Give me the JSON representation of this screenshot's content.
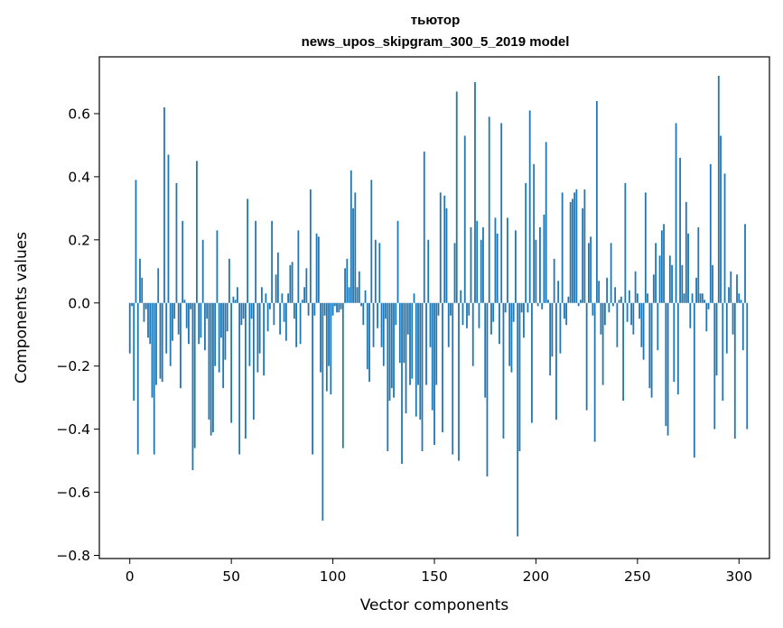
{
  "chart_data": {
    "type": "bar",
    "title": "тьютор",
    "subtitle": "news_upos_skipgram_300_5_2019 model",
    "xlabel": "Vector components",
    "ylabel": "Components values",
    "xlim": [
      -15,
      315
    ],
    "ylim": [
      -0.81,
      0.78
    ],
    "xticks": [
      0,
      50,
      100,
      150,
      200,
      250,
      300
    ],
    "yticks": [
      -0.8,
      -0.6,
      -0.4,
      -0.2,
      0.0,
      0.2,
      0.4,
      0.6
    ],
    "ytick_labels": [
      "−0.8",
      "−0.6",
      "−0.4",
      "−0.2",
      "0.0",
      "0.2",
      "0.4",
      "0.6"
    ],
    "xtick_labels": [
      "0",
      "50",
      "100",
      "150",
      "200",
      "250",
      "300"
    ],
    "grid": false,
    "bar_color": "#1f77b4",
    "x_start": 0,
    "values": [
      -0.16,
      -0.01,
      -0.31,
      0.39,
      -0.48,
      0.14,
      0.08,
      -0.06,
      -0.02,
      -0.11,
      -0.13,
      -0.3,
      -0.48,
      -0.26,
      0.11,
      -0.24,
      -0.25,
      0.62,
      -0.16,
      0.47,
      -0.2,
      -0.12,
      -0.05,
      0.38,
      -0.1,
      -0.27,
      0.26,
      0.01,
      -0.08,
      -0.13,
      -0.02,
      -0.53,
      -0.46,
      0.45,
      -0.13,
      -0.11,
      0.2,
      -0.15,
      -0.05,
      -0.37,
      -0.42,
      -0.41,
      -0.2,
      0.23,
      -0.22,
      -0.11,
      -0.27,
      -0.18,
      -0.09,
      0.14,
      -0.38,
      0.02,
      0.01,
      0.05,
      -0.48,
      -0.07,
      -0.05,
      -0.43,
      0.33,
      -0.2,
      -0.05,
      -0.37,
      0.26,
      -0.22,
      -0.16,
      0.05,
      -0.23,
      0.03,
      -0.09,
      -0.02,
      0.26,
      -0.07,
      0.09,
      0.16,
      -0.1,
      0.03,
      -0.06,
      -0.12,
      0.03,
      0.12,
      0.13,
      -0.05,
      -0.14,
      0.23,
      -0.13,
      0.01,
      0.05,
      0.11,
      -0.04,
      0.36,
      -0.48,
      -0.04,
      0.22,
      0.21,
      -0.22,
      -0.69,
      -0.04,
      -0.28,
      -0.2,
      -0.29,
      -0.04,
      -0.01,
      -0.03,
      -0.03,
      -0.02,
      -0.46,
      0.11,
      0.14,
      0.05,
      0.42,
      0.3,
      0.35,
      0.05,
      0.1,
      -0.01,
      -0.07,
      0.04,
      -0.21,
      -0.25,
      0.39,
      -0.14,
      0.2,
      -0.08,
      0.19,
      -0.14,
      -0.2,
      -0.05,
      -0.47,
      -0.31,
      -0.27,
      -0.3,
      -0.07,
      0.26,
      -0.19,
      -0.51,
      -0.19,
      -0.35,
      -0.1,
      -0.26,
      -0.24,
      0.03,
      -0.36,
      -0.26,
      -0.37,
      -0.47,
      0.48,
      -0.26,
      0.2,
      -0.14,
      -0.34,
      -0.45,
      -0.26,
      -0.04,
      0.35,
      -0.41,
      0.34,
      0.3,
      -0.14,
      -0.04,
      -0.48,
      0.19,
      0.67,
      -0.5,
      0.04,
      -0.07,
      0.53,
      -0.08,
      -0.04,
      0.24,
      -0.2,
      0.7,
      0.26,
      -0.08,
      0.2,
      0.24,
      -0.3,
      -0.55,
      0.59,
      -0.1,
      -0.06,
      0.27,
      0.22,
      -0.13,
      0.57,
      -0.43,
      -0.03,
      0.27,
      -0.2,
      -0.22,
      -0.06,
      0.23,
      -0.74,
      -0.47,
      -0.03,
      -0.11,
      0.38,
      -0.03,
      0.61,
      -0.38,
      0.44,
      0.2,
      -0.01,
      0.24,
      -0.02,
      0.28,
      0.51,
      0.01,
      -0.23,
      -0.17,
      0.14,
      -0.37,
      0.07,
      -0.16,
      0.35,
      -0.05,
      -0.07,
      0.02,
      0.32,
      0.33,
      0.35,
      0.36,
      -0.01,
      0.01,
      0.3,
      0.36,
      -0.34,
      0.19,
      0.21,
      -0.04,
      -0.44,
      0.64,
      0.07,
      -0.1,
      -0.26,
      -0.07,
      0.08,
      -0.03,
      0.19,
      -0.01,
      0.05,
      -0.14,
      0.01,
      0.02,
      -0.31,
      0.38,
      -0.06,
      0.04,
      -0.07,
      -0.1,
      0.1,
      0.03,
      -0.05,
      -0.14,
      -0.18,
      0.35,
      0.03,
      -0.27,
      -0.3,
      0.09,
      0.19,
      -0.15,
      0.15,
      0.23,
      0.25,
      -0.39,
      -0.42,
      0.15,
      0.12,
      -0.25,
      0.57,
      -0.29,
      0.46,
      0.12,
      0.03,
      0.32,
      0.22,
      -0.08,
      0.03,
      -0.49,
      0.08,
      0.24,
      0.03,
      0.03,
      0.01,
      -0.09,
      -0.02,
      0.44,
      0.12,
      -0.4,
      -0.23,
      0.72,
      0.53,
      -0.31,
      0.41,
      -0.16,
      0.05,
      0.1,
      -0.1,
      -0.43,
      0.09,
      0.03,
      0.01,
      -0.15,
      0.25,
      -0.4
    ]
  }
}
